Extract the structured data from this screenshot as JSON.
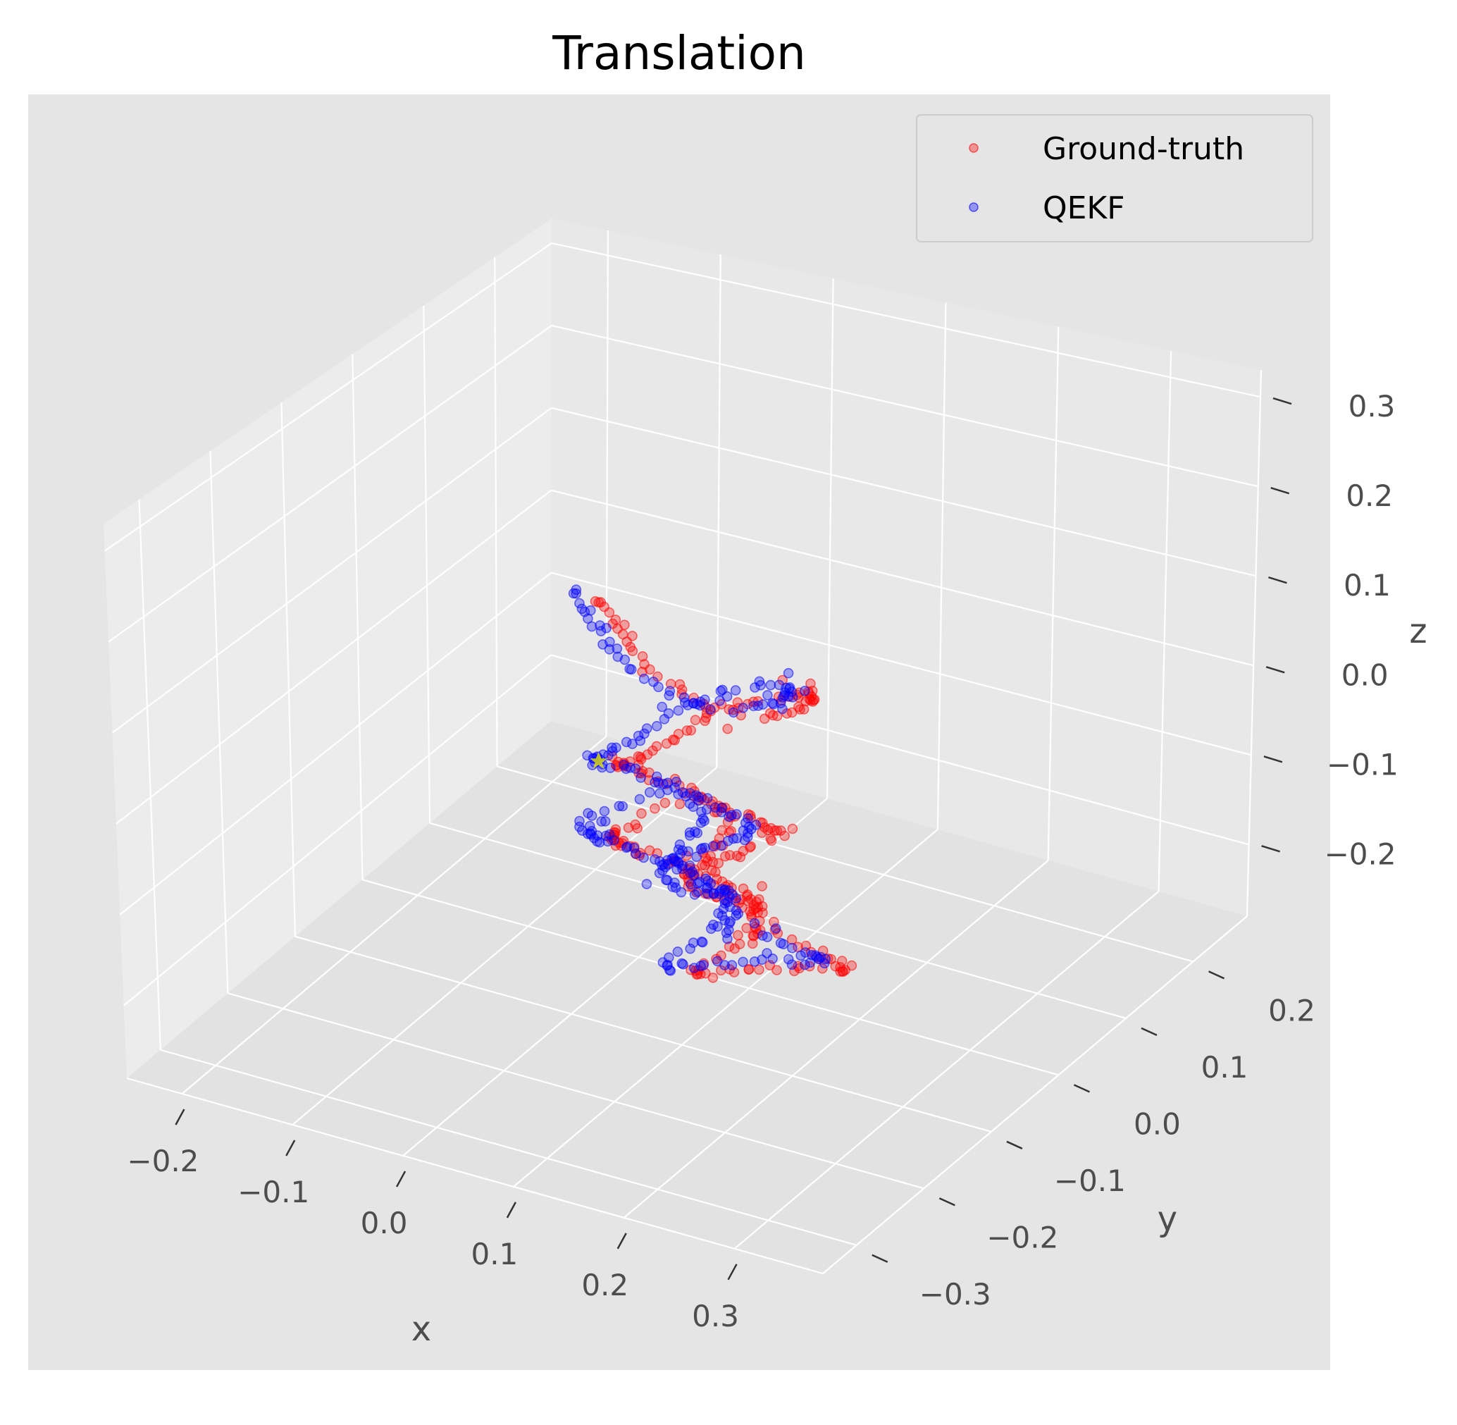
{
  "chart_data": {
    "type": "scatter",
    "projection": "3d",
    "title": "Translation",
    "xlabel": "x",
    "ylabel": "y",
    "zlabel": "z",
    "xlim": [
      -0.25,
      0.38
    ],
    "ylim": [
      -0.35,
      0.28
    ],
    "zlim": [
      -0.28,
      0.33
    ],
    "x_ticks": [
      "−0.2",
      "−0.1",
      "0.0",
      "0.1",
      "0.2",
      "0.3"
    ],
    "x_tick_values": [
      -0.2,
      -0.1,
      0.0,
      0.1,
      0.2,
      0.3
    ],
    "y_ticks": [
      "−0.3",
      "−0.2",
      "−0.1",
      "0.0",
      "0.1",
      "0.2"
    ],
    "y_tick_values": [
      -0.3,
      -0.2,
      -0.1,
      0.0,
      0.1,
      0.2
    ],
    "z_ticks": [
      "−0.2",
      "−0.1",
      "0.0",
      "0.1",
      "0.2",
      "0.3"
    ],
    "z_tick_values": [
      -0.2,
      -0.1,
      0.0,
      0.1,
      0.2,
      0.3
    ],
    "grid": true,
    "legend_position": "top-right",
    "legend": [
      "Ground-truth",
      "QEKF"
    ],
    "colors": {
      "ground_truth": "#ff0000",
      "qekf": "#0000ff",
      "start_marker": "#e6e600",
      "pane": "#e5e5e5",
      "grid": "#ffffff"
    },
    "series": [
      {
        "name": "Ground-truth",
        "color": "#ff0000",
        "seed": 11,
        "path_offset": 0.018
      },
      {
        "name": "QEKF",
        "color": "#0000ff",
        "seed": 29,
        "path_offset": -0.006
      }
    ]
  }
}
